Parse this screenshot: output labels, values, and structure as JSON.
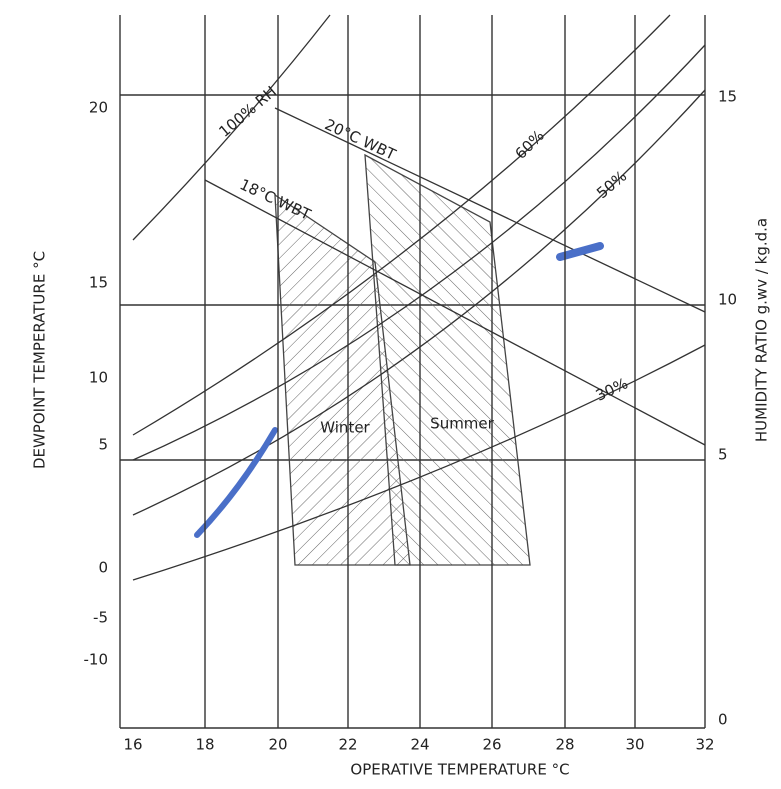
{
  "chart_data": {
    "type": "psychrometric",
    "x_label": "OPERATIVE TEMPERATURE °C",
    "y_label": "DEWPOINT TEMPERATURE °C",
    "y2_label": "HUMIDITY RATIO g.wv / kg.d.a",
    "xticks": [
      "16",
      "18",
      "20",
      "22",
      "24",
      "26",
      "28",
      "30",
      "32"
    ],
    "yticks": [
      "20",
      "15",
      "10",
      "5",
      "0",
      "-5",
      "-10"
    ],
    "y2ticks": [
      "15",
      "10",
      "5",
      "0"
    ],
    "curve_labels": [
      "100% RH",
      "60%",
      "50%",
      "30%",
      "20°C WBT",
      "18°C WBT"
    ],
    "zones": [
      "Winter",
      "Summer"
    ]
  }
}
